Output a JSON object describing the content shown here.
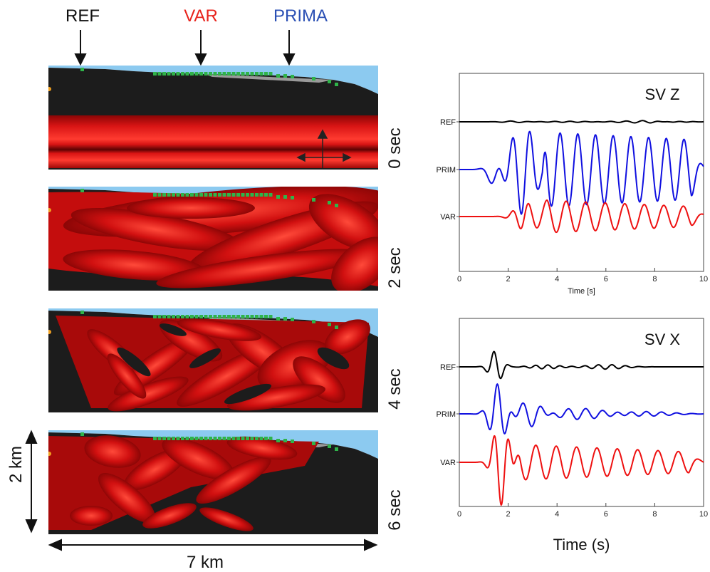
{
  "arrows": {
    "ref": "REF",
    "var": "VAR",
    "prima": "PRIMA"
  },
  "colors": {
    "ref": "#111111",
    "var": "#e8231c",
    "prima": "#2a4fb4",
    "ground": "#1c1c1c",
    "wave": "#d40f0f",
    "sky": "#8ccaf0",
    "station": "#2fb34a"
  },
  "snapshots": [
    {
      "label": "0 sec"
    },
    {
      "label": "2 sec"
    },
    {
      "label": "4 sec"
    },
    {
      "label": "6 sec"
    }
  ],
  "scale": {
    "depth": "2 km",
    "width": "7 km"
  },
  "chart_data": [
    {
      "type": "line",
      "title": "SV  Z",
      "xlabel": "Time [s]",
      "xlim": [
        0,
        10
      ],
      "xticks": [
        0,
        2,
        4,
        6,
        8,
        10
      ],
      "series": [
        {
          "name": "REF",
          "color": "#000000",
          "amp": 0.16,
          "shape": "ref_z"
        },
        {
          "name": "PRIM",
          "color": "#1010e0",
          "amp": 1.0,
          "shape": "prim_z"
        },
        {
          "name": "VAR",
          "color": "#ee1010",
          "amp": 0.6,
          "shape": "var_z"
        }
      ]
    },
    {
      "type": "line",
      "title": "SV X",
      "xlabel": "Time (s)",
      "xlim": [
        0,
        10
      ],
      "xticks": [
        0,
        2,
        4,
        6,
        8,
        10
      ],
      "series": [
        {
          "name": "REF",
          "color": "#000000",
          "amp": 0.6,
          "shape": "ref_x"
        },
        {
          "name": "PRIM",
          "color": "#1010e0",
          "amp": 0.85,
          "shape": "prim_x"
        },
        {
          "name": "VAR",
          "color": "#ee1010",
          "amp": 1.0,
          "shape": "var_x"
        }
      ]
    }
  ]
}
